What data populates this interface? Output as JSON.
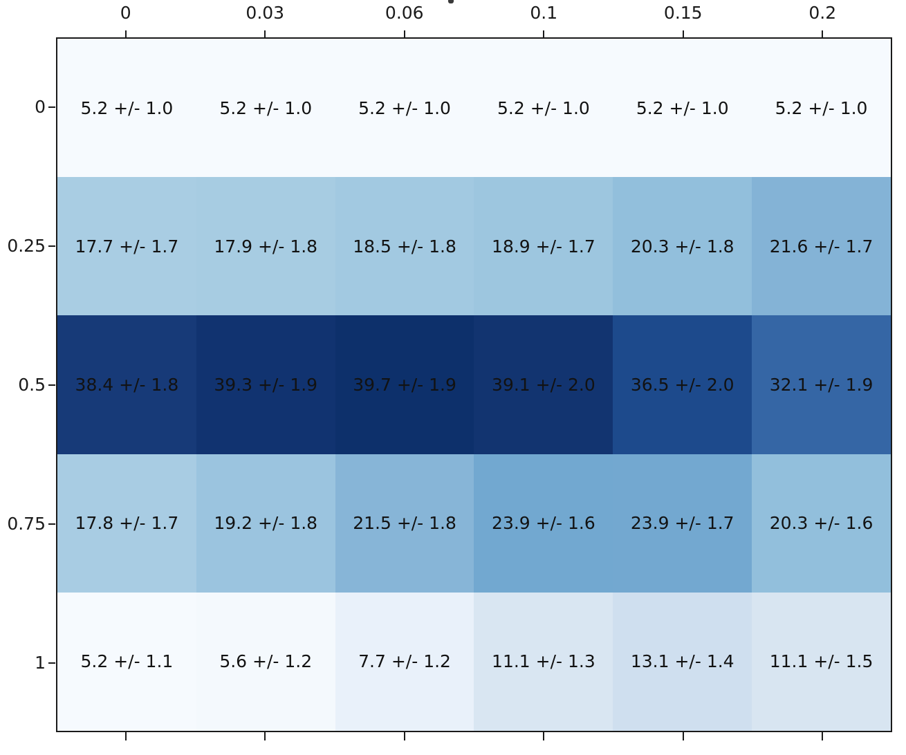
{
  "chart_data": {
    "type": "heatmap",
    "colormap": "Blues",
    "x_axis_position": "top",
    "x_tick_labels": [
      "0",
      "0.03",
      "0.06",
      "0.1",
      "0.15",
      "0.2"
    ],
    "y_tick_labels": [
      "0",
      "0.25",
      "0.5",
      "0.75",
      "1"
    ],
    "values": [
      [
        5.2,
        5.2,
        5.2,
        5.2,
        5.2,
        5.2
      ],
      [
        17.7,
        17.9,
        18.5,
        18.9,
        20.3,
        21.6
      ],
      [
        38.4,
        39.3,
        39.7,
        39.1,
        36.5,
        32.1
      ],
      [
        17.8,
        19.2,
        21.5,
        23.9,
        23.9,
        20.3
      ],
      [
        5.2,
        5.6,
        7.7,
        11.1,
        13.1,
        11.1
      ]
    ],
    "errors": [
      [
        1.0,
        1.0,
        1.0,
        1.0,
        1.0,
        1.0
      ],
      [
        1.7,
        1.8,
        1.8,
        1.7,
        1.8,
        1.7
      ],
      [
        1.8,
        1.9,
        1.9,
        2.0,
        2.0,
        1.9
      ],
      [
        1.7,
        1.8,
        1.8,
        1.6,
        1.7,
        1.6
      ],
      [
        1.1,
        1.2,
        1.2,
        1.3,
        1.4,
        1.5
      ]
    ],
    "annotations": [
      [
        "5.2 +/- 1.0",
        "5.2 +/- 1.0",
        "5.2 +/- 1.0",
        "5.2 +/- 1.0",
        "5.2 +/- 1.0",
        "5.2 +/- 1.0"
      ],
      [
        "17.7 +/- 1.7",
        "17.9 +/- 1.8",
        "18.5 +/- 1.8",
        "18.9 +/- 1.7",
        "20.3 +/- 1.8",
        "21.6 +/- 1.7"
      ],
      [
        "38.4 +/- 1.8",
        "39.3 +/- 1.9",
        "39.7 +/- 1.9",
        "39.1 +/- 2.0",
        "36.5 +/- 2.0",
        "32.1 +/- 1.9"
      ],
      [
        "17.8 +/- 1.7",
        "19.2 +/- 1.8",
        "21.5 +/- 1.8",
        "23.9 +/- 1.6",
        "23.9 +/- 1.7",
        "20.3 +/- 1.6"
      ],
      [
        "5.2 +/- 1.1",
        "5.6 +/- 1.2",
        "7.7 +/- 1.2",
        "11.1 +/- 1.3",
        "13.1 +/- 1.4",
        "11.1 +/- 1.5"
      ]
    ],
    "cell_colors": [
      [
        "#f6fafe",
        "#f6fafe",
        "#f6fafe",
        "#f6fafe",
        "#f6fafe",
        "#f6fafe"
      ],
      [
        "#a9cde3",
        "#a7cce2",
        "#a2c9e1",
        "#9dc6df",
        "#92bfdc",
        "#84b3d6"
      ],
      [
        "#173a78",
        "#113370",
        "#0d306b",
        "#123470",
        "#1d4a8c",
        "#3566a5"
      ],
      [
        "#a8cce3",
        "#9bc4df",
        "#87b5d7",
        "#72a8d0",
        "#73a8d0",
        "#92bfdc"
      ],
      [
        "#f6fafe",
        "#f4f9fd",
        "#e9f1fa",
        "#d9e6f2",
        "#cfdfef",
        "#d8e5f1"
      ]
    ],
    "annotation_color": "#121212",
    "value_range": [
      5.2,
      39.7
    ]
  }
}
